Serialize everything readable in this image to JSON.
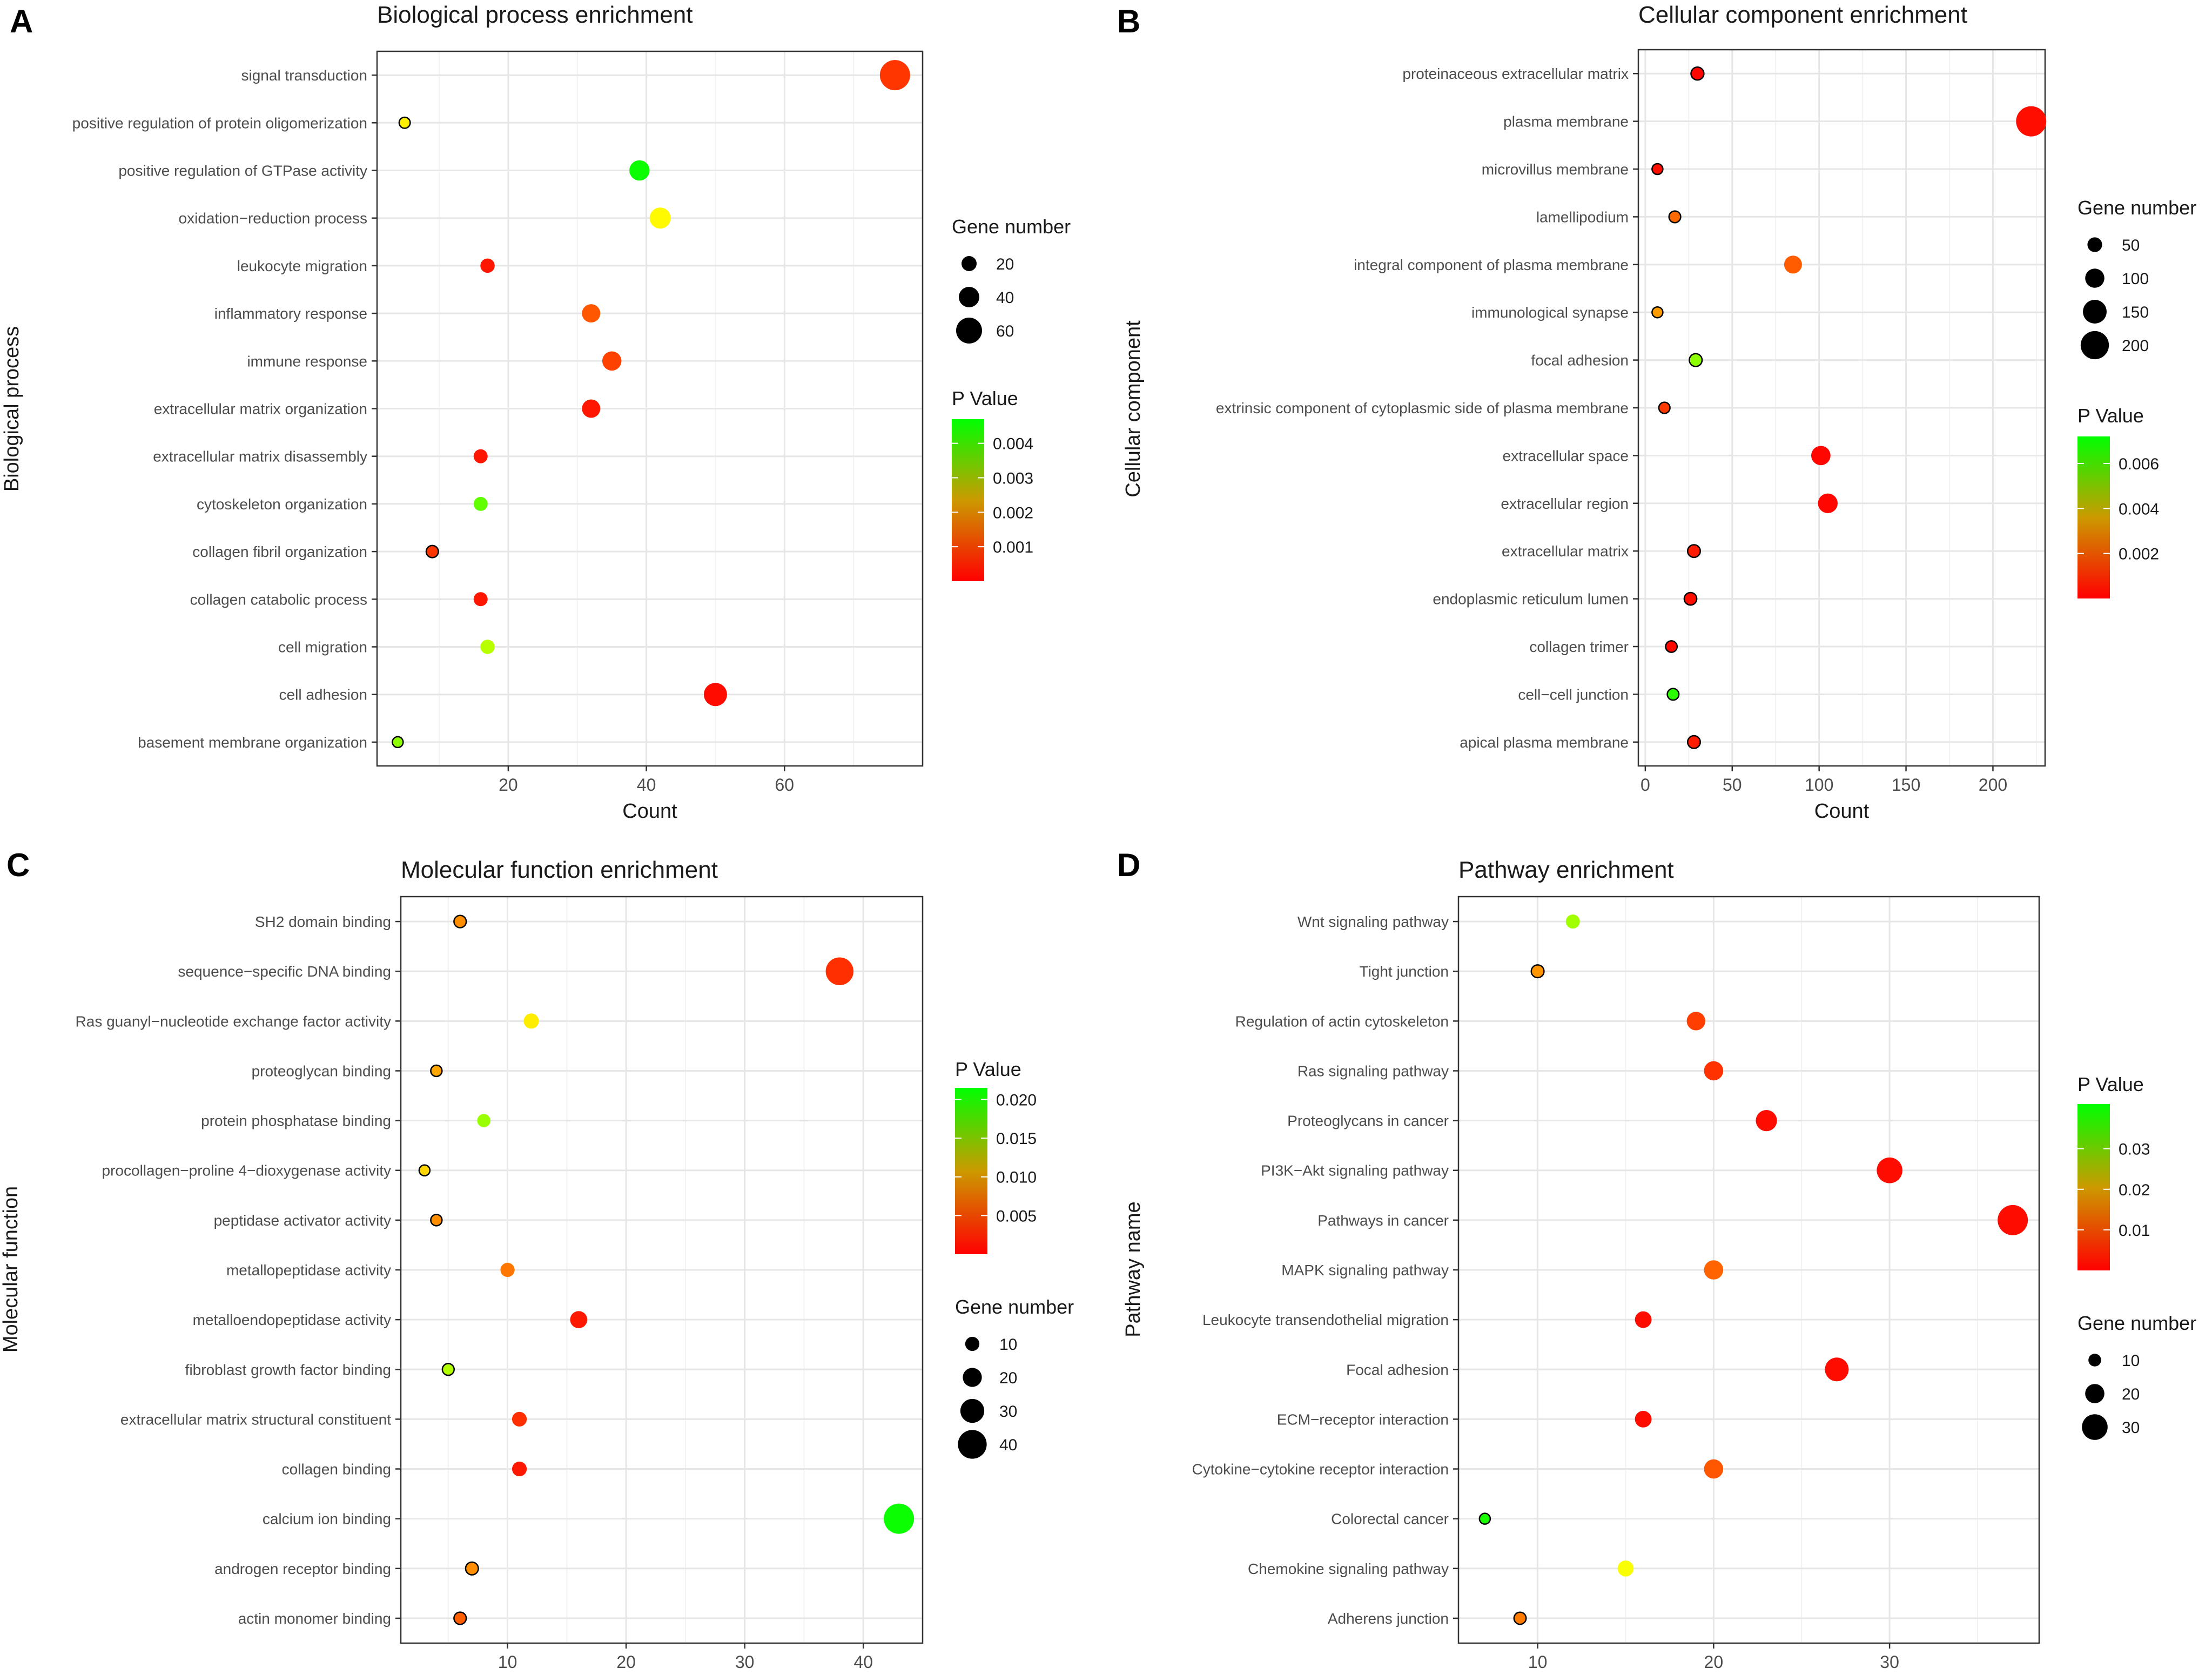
{
  "chart_data": [
    {
      "type": "scatter",
      "panel": "A",
      "title": "Biological process enrichment",
      "xlabel": "Count",
      "ylabel": "Biological process",
      "xlim": [
        1,
        80
      ],
      "xticks": [
        20,
        40,
        60
      ],
      "categories": [
        "signal transduction",
        "positive regulation of protein oligomerization",
        "positive regulation of GTPase activity",
        "oxidation−reduction process",
        "leukocyte migration",
        "inflammatory response",
        "immune response",
        "extracellular matrix organization",
        "extracellular matrix disassembly",
        "cytoskeleton organization",
        "collagen fibril organization",
        "collagen catabolic process",
        "cell migration",
        "cell adhesion",
        "basement membrane organization"
      ],
      "count": [
        76,
        5,
        39,
        42,
        17,
        32,
        35,
        32,
        16,
        16,
        9,
        16,
        17,
        50,
        4
      ],
      "pvalue": [
        0.0005,
        0.0022,
        0.0046,
        0.0023,
        0.0002,
        0.0008,
        0.0006,
        0.0002,
        0.0002,
        0.0038,
        0.0005,
        0.0002,
        0.003,
        0.0001,
        0.0034
      ],
      "p_legend": {
        "title": "P Value",
        "min": 0,
        "max": 0.0047,
        "ticks": [
          "0.004",
          "0.003",
          "0.002",
          "0.001"
        ],
        "tick_values": [
          0.004,
          0.003,
          0.002,
          0.001
        ]
      },
      "size_legend": {
        "title": "Gene number",
        "labels": [
          "20",
          "40",
          "60"
        ],
        "values": [
          20,
          40,
          60
        ]
      },
      "size_range": [
        4,
        76
      ],
      "legend_order": "size-first",
      "legend_position": "right"
    },
    {
      "type": "scatter",
      "panel": "B",
      "title": "Cellular component enrichment",
      "xlabel": "Count",
      "ylabel": "Cellular component",
      "xlim": [
        -4,
        230
      ],
      "xticks": [
        0,
        50,
        100,
        150,
        200
      ],
      "categories": [
        "proteinaceous extracellular matrix",
        "plasma membrane",
        "microvillus membrane",
        "lamellipodium",
        "integral component of plasma membrane",
        "immunological synapse",
        "focal adhesion",
        "extrinsic component of cytoplasmic side of plasma membrane",
        "extracellular space",
        "extracellular region",
        "extracellular matrix",
        "endoplasmic reticulum lumen",
        "collagen trimer",
        "cell−cell junction",
        "apical plasma membrane"
      ],
      "count": [
        30,
        222,
        7,
        17,
        85,
        7,
        29,
        11,
        101,
        105,
        28,
        26,
        15,
        16,
        28
      ],
      "pvalue": [
        0.0001,
        0.0002,
        0.0002,
        0.0015,
        0.0013,
        0.0022,
        0.0052,
        0.0008,
        0.0001,
        0.0001,
        0.0004,
        0.0002,
        0.0001,
        0.0066,
        0.0004
      ],
      "p_legend": {
        "title": "P Value",
        "min": 0,
        "max": 0.0072,
        "ticks": [
          "0.006",
          "0.004",
          "0.002"
        ],
        "tick_values": [
          0.006,
          0.004,
          0.002
        ]
      },
      "size_legend": {
        "title": "Gene number",
        "labels": [
          "50",
          "100",
          "150",
          "200"
        ],
        "values": [
          50,
          100,
          150,
          200
        ]
      },
      "size_range": [
        7,
        222
      ],
      "legend_order": "size-first",
      "legend_position": "right"
    },
    {
      "type": "scatter",
      "panel": "C",
      "title": "Molecular function enrichment",
      "xlabel": "Count",
      "ylabel": "Molecular function",
      "xlim": [
        1,
        45
      ],
      "xticks": [
        10,
        20,
        30,
        40
      ],
      "categories": [
        "SH2 domain binding",
        "sequence−specific DNA binding",
        "Ras guanyl−nucleotide exchange factor activity",
        "proteoglycan binding",
        "protein phosphatase binding",
        "procollagen−proline 4−dioxygenase activity",
        "peptidase activator activity",
        "metallopeptidase activity",
        "metalloendopeptidase activity",
        "fibroblast growth factor binding",
        "extracellular matrix structural constituent",
        "collagen binding",
        "calcium ion binding",
        "androgen receptor binding",
        "actin monomer binding"
      ],
      "count": [
        6,
        38,
        12,
        4,
        8,
        3,
        4,
        10,
        16,
        5,
        11,
        11,
        43,
        7,
        6
      ],
      "pvalue": [
        0.006,
        0.002,
        0.01,
        0.007,
        0.015,
        0.009,
        0.006,
        0.005,
        0.001,
        0.014,
        0.002,
        0.001,
        0.021,
        0.006,
        0.004
      ],
      "p_legend": {
        "title": "P Value",
        "min": 0,
        "max": 0.0215,
        "ticks": [
          "0.020",
          "0.015",
          "0.010",
          "0.005"
        ],
        "tick_values": [
          0.02,
          0.015,
          0.01,
          0.005
        ]
      },
      "size_legend": {
        "title": "Gene number",
        "labels": [
          "10",
          "20",
          "30",
          "40"
        ],
        "values": [
          10,
          20,
          30,
          40
        ]
      },
      "size_range": [
        3,
        43
      ],
      "legend_order": "p-first",
      "legend_position": "right"
    },
    {
      "type": "scatter",
      "panel": "D",
      "title": "Pathway enrichment",
      "xlabel": "Count",
      "ylabel": "Pathway name",
      "xlim": [
        5.5,
        38.5
      ],
      "xticks": [
        10,
        20,
        30
      ],
      "categories": [
        "Wnt signaling pathway",
        "Tight junction",
        "Regulation of actin cytoskeleton",
        "Ras signaling pathway",
        "Proteoglycans in cancer",
        "PI3K−Akt signaling pathway",
        "Pathways in cancer",
        "MAPK signaling pathway",
        "Leukocyte transendothelial migration",
        "Focal adhesion",
        "ECM−receptor interaction",
        "Cytokine−cytokine receptor interaction",
        "Colorectal cancer",
        "Chemokine signaling pathway",
        "Adherens junction"
      ],
      "count": [
        12,
        10,
        19,
        20,
        23,
        30,
        37,
        20,
        16,
        27,
        16,
        20,
        7,
        15,
        9
      ],
      "pvalue": [
        0.028,
        0.012,
        0.005,
        0.004,
        0.001,
        0.001,
        0.001,
        0.008,
        0.001,
        0.001,
        0.001,
        0.007,
        0.039,
        0.021,
        0.01
      ],
      "p_legend": {
        "title": "P Value",
        "min": 0,
        "max": 0.041,
        "ticks": [
          "0.03",
          "0.02",
          "0.01"
        ],
        "tick_values": [
          0.03,
          0.02,
          0.01
        ]
      },
      "size_legend": {
        "title": "Gene number",
        "labels": [
          "10",
          "20",
          "30"
        ],
        "values": [
          10,
          20,
          30
        ]
      },
      "size_range": [
        7,
        37
      ],
      "legend_order": "p-first",
      "legend_position": "right"
    }
  ]
}
